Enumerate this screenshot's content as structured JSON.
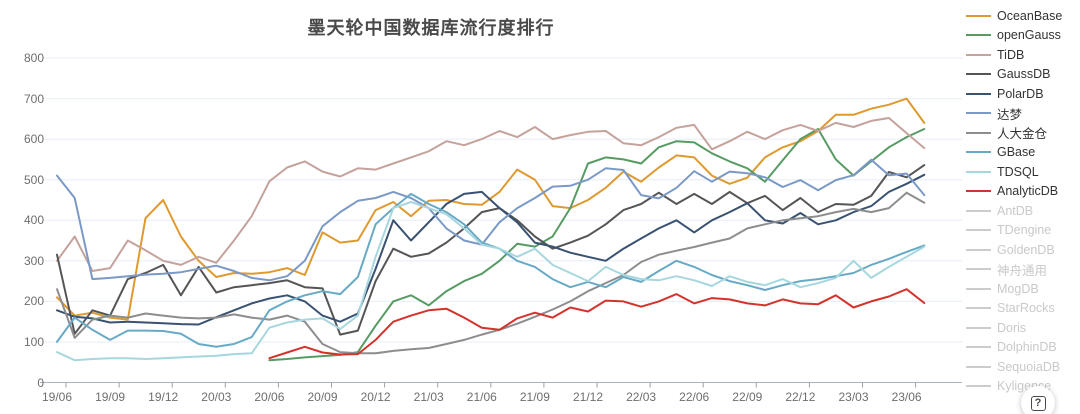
{
  "chart": {
    "title": "墨天轮中国数据库流行度排行",
    "title_color": "#4a4a4a",
    "grid_color": "#e7eef7",
    "axis_color": "#aab2bd",
    "tick_color": "#9aa0a6",
    "label_color": "#6e6e6e"
  },
  "help_button": {
    "label": "?"
  },
  "chart_data": {
    "type": "line",
    "title": "墨天轮中国数据库流行度排行",
    "xlabel": "",
    "ylabel": "",
    "ylim": [
      0,
      800
    ],
    "y_tick_labels": [
      "0",
      "100",
      "200",
      "300",
      "400",
      "500",
      "600",
      "700",
      "800"
    ],
    "x_label_every": 3,
    "grid": true,
    "legend_position": "right",
    "x": [
      "19/06",
      "19/07",
      "19/08",
      "19/09",
      "19/10",
      "19/11",
      "19/12",
      "20/01",
      "20/02",
      "20/03",
      "20/04",
      "20/05",
      "20/06",
      "20/07",
      "20/08",
      "20/09",
      "20/10",
      "20/11",
      "20/12",
      "21/01",
      "21/02",
      "21/03",
      "21/04",
      "21/05",
      "21/06",
      "21/07",
      "21/08",
      "21/09",
      "21/10",
      "21/11",
      "21/12",
      "22/01",
      "22/02",
      "22/03",
      "22/04",
      "22/05",
      "22/06",
      "22/07",
      "22/08",
      "22/09",
      "22/10",
      "22/11",
      "22/12",
      "23/01",
      "23/02",
      "23/03",
      "23/04",
      "23/05",
      "23/06",
      "23/07"
    ],
    "series": [
      {
        "name": "OceanBase",
        "color": "#de9a2f",
        "enabled": true,
        "values": [
          210,
          165,
          172,
          160,
          155,
          405,
          450,
          360,
          300,
          260,
          270,
          268,
          272,
          282,
          265,
          370,
          345,
          350,
          425,
          445,
          410,
          448,
          450,
          440,
          438,
          470,
          525,
          500,
          435,
          430,
          450,
          480,
          520,
          495,
          530,
          560,
          555,
          510,
          490,
          505,
          555,
          580,
          595,
          620,
          660,
          660,
          675,
          685,
          700,
          640
        ]
      },
      {
        "name": "openGauss",
        "color": "#579b63",
        "enabled": true,
        "values": [
          null,
          null,
          null,
          null,
          null,
          null,
          null,
          null,
          null,
          null,
          null,
          null,
          55,
          58,
          62,
          65,
          68,
          75,
          140,
          200,
          215,
          190,
          225,
          250,
          268,
          300,
          342,
          335,
          360,
          430,
          540,
          555,
          550,
          540,
          580,
          595,
          592,
          565,
          545,
          528,
          495,
          548,
          600,
          625,
          550,
          510,
          545,
          580,
          605,
          625
        ]
      },
      {
        "name": "TiDB",
        "color": "#c5a29b",
        "enabled": true,
        "values": [
          300,
          360,
          275,
          282,
          350,
          326,
          300,
          290,
          310,
          295,
          350,
          410,
          496,
          530,
          545,
          520,
          508,
          528,
          525,
          540,
          555,
          570,
          595,
          585,
          600,
          620,
          605,
          630,
          600,
          610,
          618,
          620,
          590,
          585,
          605,
          628,
          635,
          575,
          595,
          618,
          600,
          622,
          635,
          620,
          640,
          630,
          645,
          652,
          615,
          578
        ]
      },
      {
        "name": "GaussDB",
        "color": "#555555",
        "enabled": true,
        "values": [
          315,
          120,
          178,
          165,
          255,
          270,
          290,
          215,
          285,
          222,
          235,
          240,
          245,
          252,
          235,
          232,
          118,
          128,
          250,
          330,
          310,
          318,
          345,
          380,
          420,
          430,
          400,
          360,
          330,
          345,
          362,
          390,
          425,
          440,
          468,
          440,
          465,
          440,
          470,
          442,
          460,
          425,
          455,
          420,
          440,
          438,
          460,
          519,
          506,
          536
        ]
      },
      {
        "name": "PolarDB",
        "color": "#3a5272",
        "enabled": true,
        "values": [
          178,
          162,
          158,
          148,
          150,
          148,
          146,
          144,
          143,
          161,
          178,
          195,
          207,
          215,
          200,
          165,
          150,
          170,
          280,
          400,
          350,
          395,
          440,
          465,
          470,
          430,
          395,
          345,
          335,
          320,
          310,
          300,
          330,
          355,
          380,
          400,
          370,
          400,
          420,
          442,
          400,
          392,
          418,
          390,
          400,
          420,
          435,
          470,
          490,
          512
        ]
      },
      {
        "name": "达梦",
        "color": "#7b99c7",
        "enabled": true,
        "values": [
          510,
          455,
          255,
          258,
          262,
          266,
          268,
          272,
          280,
          288,
          275,
          258,
          252,
          262,
          300,
          385,
          420,
          448,
          455,
          470,
          455,
          430,
          380,
          350,
          340,
          395,
          430,
          455,
          483,
          485,
          500,
          528,
          524,
          462,
          454,
          480,
          521,
          495,
          520,
          516,
          506,
          482,
          499,
          474,
          499,
          511,
          549,
          511,
          515,
          462
        ]
      },
      {
        "name": "人大金仓",
        "color": "#8d8d8d",
        "enabled": true,
        "values": [
          230,
          110,
          155,
          165,
          160,
          170,
          165,
          160,
          158,
          160,
          168,
          160,
          155,
          165,
          150,
          95,
          75,
          72,
          72,
          78,
          82,
          85,
          95,
          105,
          118,
          130,
          145,
          162,
          180,
          200,
          225,
          245,
          265,
          297,
          315,
          325,
          334,
          345,
          355,
          380,
          390,
          400,
          405,
          410,
          420,
          428,
          420,
          430,
          468,
          443
        ]
      },
      {
        "name": "GBase",
        "color": "#68aac6",
        "enabled": true,
        "values": [
          100,
          160,
          130,
          105,
          128,
          128,
          127,
          120,
          95,
          88,
          95,
          112,
          178,
          200,
          215,
          225,
          218,
          260,
          390,
          430,
          465,
          440,
          420,
          390,
          345,
          330,
          300,
          285,
          255,
          235,
          248,
          235,
          260,
          248,
          275,
          300,
          285,
          265,
          250,
          240,
          228,
          240,
          250,
          255,
          262,
          270,
          290,
          305,
          322,
          338
        ]
      },
      {
        "name": "TDSQL",
        "color": "#a7d7de",
        "enabled": true,
        "values": [
          75,
          55,
          58,
          60,
          60,
          58,
          60,
          62,
          64,
          66,
          70,
          72,
          135,
          148,
          155,
          158,
          132,
          165,
          310,
          430,
          445,
          430,
          415,
          380,
          340,
          330,
          310,
          330,
          290,
          270,
          250,
          285,
          265,
          255,
          252,
          262,
          252,
          238,
          262,
          248,
          240,
          255,
          235,
          245,
          258,
          300,
          258,
          285,
          310,
          335
        ]
      },
      {
        "name": "AnalyticDB",
        "color": "#d4332c",
        "enabled": true,
        "values": [
          null,
          null,
          null,
          null,
          null,
          null,
          null,
          null,
          null,
          null,
          null,
          null,
          60,
          74,
          88,
          74,
          69,
          70,
          105,
          150,
          165,
          178,
          182,
          160,
          135,
          130,
          158,
          172,
          160,
          185,
          175,
          202,
          200,
          187,
          200,
          218,
          195,
          208,
          205,
          195,
          190,
          205,
          195,
          193,
          215,
          185,
          200,
          212,
          230,
          196
        ]
      },
      {
        "name": "AntDB",
        "color": "#cccccc",
        "enabled": false,
        "values": []
      },
      {
        "name": "TDengine",
        "color": "#cccccc",
        "enabled": false,
        "values": []
      },
      {
        "name": "GoldenDB",
        "color": "#cccccc",
        "enabled": false,
        "values": []
      },
      {
        "name": "神舟通用",
        "color": "#cccccc",
        "enabled": false,
        "values": []
      },
      {
        "name": "MogDB",
        "color": "#cccccc",
        "enabled": false,
        "values": []
      },
      {
        "name": "StarRocks",
        "color": "#cccccc",
        "enabled": false,
        "values": []
      },
      {
        "name": "Doris",
        "color": "#cccccc",
        "enabled": false,
        "values": []
      },
      {
        "name": "DolphinDB",
        "color": "#cccccc",
        "enabled": false,
        "values": []
      },
      {
        "name": "SequoiaDB",
        "color": "#cccccc",
        "enabled": false,
        "values": []
      },
      {
        "name": "Kyligence",
        "color": "#cccccc",
        "enabled": false,
        "values": []
      }
    ]
  }
}
